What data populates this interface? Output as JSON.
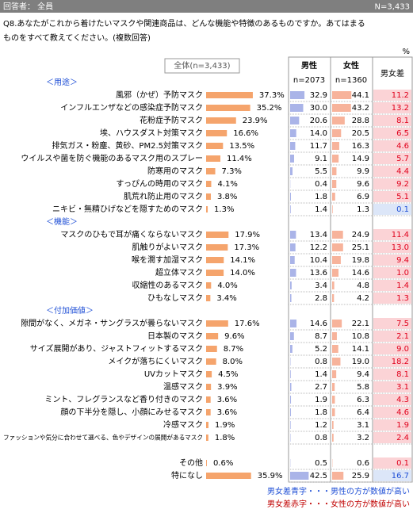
{
  "header": {
    "respondents": "回答者： 全員",
    "n": "N=3,433"
  },
  "question": [
    "Q8.あなたがこれから着けたいマスクや関連商品は、どんな機能や特徴のあるものですか。あてはまる",
    "ものをすべて教えてください。(複数回答)"
  ],
  "unit": "%",
  "chart_data": {
    "type": "bar",
    "columns": {
      "total": "全体(n=3,433)",
      "male": "男性",
      "male_n": "n=2073",
      "female": "女性",
      "female_n": "n=1360",
      "diff": "男女差"
    },
    "colors": {
      "total": "#f5a46c",
      "male": "#aab4e8",
      "female": "#f7b39b",
      "diff_female_bg": "#fbd3d6",
      "diff_female_text": "#e0001b",
      "diff_male_bg": "#dce6f8",
      "diff_male_text": "#1f4fd6"
    },
    "sections": [
      {
        "title": "＜用途＞",
        "rows": [
          {
            "label": "風邪（かぜ）予防マスク",
            "values": [
              37.3,
              32.9,
              44.1,
              11.2
            ],
            "value_labels": [
              "37.3%",
              "32.9",
              "44.1",
              "11.2"
            ]
          },
          {
            "label": "インフルエンザなどの感染症予防マスク",
            "values": [
              35.2,
              30.0,
              43.2,
              13.2
            ],
            "value_labels": [
              "35.2%",
              "30.0",
              "43.2",
              "13.2"
            ]
          },
          {
            "label": "花粉症予防マスク",
            "values": [
              23.9,
              20.6,
              28.8,
              8.1
            ],
            "value_labels": [
              "23.9%",
              "20.6",
              "28.8",
              "8.1"
            ]
          },
          {
            "label": "埃、ハウスダスト対策マスク",
            "values": [
              16.6,
              14.0,
              20.5,
              6.5
            ],
            "value_labels": [
              "16.6%",
              "14.0",
              "20.5",
              "6.5"
            ]
          },
          {
            "label": "排気ガス・粉塵、黄砂、PM2.5対策マスク",
            "values": [
              13.5,
              11.7,
              16.3,
              4.6
            ],
            "value_labels": [
              "13.5%",
              "11.7",
              "16.3",
              "4.6"
            ]
          },
          {
            "label": "ウイルスや菌を防ぐ機能のあるマスク用のスプレー",
            "values": [
              11.4,
              9.1,
              14.9,
              5.7
            ],
            "value_labels": [
              "11.4%",
              "9.1",
              "14.9",
              "5.7"
            ]
          },
          {
            "label": "防寒用のマスク",
            "values": [
              7.3,
              5.5,
              9.9,
              4.4
            ],
            "value_labels": [
              "7.3%",
              "5.5",
              "9.9",
              "4.4"
            ]
          },
          {
            "label": "すっぴんの時用のマスク",
            "values": [
              4.1,
              0.4,
              9.6,
              9.2
            ],
            "value_labels": [
              "4.1%",
              "0.4",
              "9.6",
              "9.2"
            ]
          },
          {
            "label": "肌荒れ防止用のマスク",
            "values": [
              3.8,
              1.8,
              6.9,
              5.1
            ],
            "value_labels": [
              "3.8%",
              "1.8",
              "6.9",
              "5.1"
            ]
          },
          {
            "label": "ニキビ・無精ひげなどを隠すためのマスク",
            "values": [
              1.3,
              1.4,
              1.3,
              0.1
            ],
            "value_labels": [
              "1.3%",
              "1.4",
              "1.3",
              "0.1"
            ]
          }
        ]
      },
      {
        "title": "＜機能＞",
        "rows": [
          {
            "label": "マスクのひもで耳が痛くならないマスク",
            "values": [
              17.9,
              13.4,
              24.9,
              11.4
            ],
            "value_labels": [
              "17.9%",
              "13.4",
              "24.9",
              "11.4"
            ]
          },
          {
            "label": "肌触りがよいマスク",
            "values": [
              17.3,
              12.2,
              25.1,
              13.0
            ],
            "value_labels": [
              "17.3%",
              "12.2",
              "25.1",
              "13.0"
            ]
          },
          {
            "label": "喉を潤す加湿マスク",
            "values": [
              14.1,
              10.4,
              19.8,
              9.4
            ],
            "value_labels": [
              "14.1%",
              "10.4",
              "19.8",
              "9.4"
            ]
          },
          {
            "label": "超立体マスク",
            "values": [
              14.0,
              13.6,
              14.6,
              1.0
            ],
            "value_labels": [
              "14.0%",
              "13.6",
              "14.6",
              "1.0"
            ]
          },
          {
            "label": "収縮性のあるマスク",
            "values": [
              4.0,
              3.4,
              4.8,
              1.4
            ],
            "value_labels": [
              "4.0%",
              "3.4",
              "4.8",
              "1.4"
            ]
          },
          {
            "label": "ひもなしマスク",
            "values": [
              3.4,
              2.8,
              4.2,
              1.3
            ],
            "value_labels": [
              "3.4%",
              "2.8",
              "4.2",
              "1.3"
            ]
          }
        ]
      },
      {
        "title": "＜付加価値＞",
        "rows": [
          {
            "label": "隙間がなく、メガネ・サングラスが曇らないマスク",
            "values": [
              17.6,
              14.6,
              22.1,
              7.5
            ],
            "value_labels": [
              "17.6%",
              "14.6",
              "22.1",
              "7.5"
            ]
          },
          {
            "label": "日本製のマスク",
            "values": [
              9.6,
              8.7,
              10.8,
              2.1
            ],
            "value_labels": [
              "9.6%",
              "8.7",
              "10.8",
              "2.1"
            ]
          },
          {
            "label": "サイズ展開があり、ジャストフィットするマスク",
            "values": [
              8.7,
              5.2,
              14.1,
              9.0
            ],
            "value_labels": [
              "8.7%",
              "5.2",
              "14.1",
              "9.0"
            ]
          },
          {
            "label": "メイクが落ちにくいマスク",
            "values": [
              8.0,
              0.8,
              19.0,
              18.2
            ],
            "value_labels": [
              "8.0%",
              "0.8",
              "19.0",
              "18.2"
            ]
          },
          {
            "label": "UVカットマスク",
            "values": [
              4.5,
              1.4,
              9.4,
              8.1
            ],
            "value_labels": [
              "4.5%",
              "1.4",
              "9.4",
              "8.1"
            ]
          },
          {
            "label": "温感マスク",
            "values": [
              3.9,
              2.7,
              5.8,
              3.1
            ],
            "value_labels": [
              "3.9%",
              "2.7",
              "5.8",
              "3.1"
            ]
          },
          {
            "label": "ミント、フレグランスなど香り付きのマスク",
            "values": [
              3.6,
              1.9,
              6.3,
              4.3
            ],
            "value_labels": [
              "3.6%",
              "1.9",
              "6.3",
              "4.3"
            ]
          },
          {
            "label": "顔の下半分を隠し、小顔にみせるマスク",
            "values": [
              3.6,
              1.8,
              6.4,
              4.6
            ],
            "value_labels": [
              "3.6%",
              "1.8",
              "6.4",
              "4.6"
            ]
          },
          {
            "label": "冷感マスク",
            "values": [
              1.9,
              1.2,
              3.1,
              1.9
            ],
            "value_labels": [
              "1.9%",
              "1.2",
              "3.1",
              "1.9"
            ]
          },
          {
            "label": "ファッションや気分に合わせて選べる、色やデザインの展開があるマスク",
            "values": [
              1.8,
              0.8,
              3.2,
              2.4
            ],
            "value_labels": [
              "1.8%",
              "0.8",
              "3.2",
              "2.4"
            ]
          }
        ]
      },
      {
        "rows": [
          {
            "label": "その他",
            "values": [
              0.6,
              0.5,
              0.6,
              0.1
            ],
            "value_labels": [
              "0.6%",
              "0.5",
              "0.6",
              "0.1"
            ]
          },
          {
            "label": "特になし",
            "values": [
              35.9,
              42.5,
              25.9,
              16.7
            ],
            "value_labels": [
              "35.9%",
              "42.5",
              "25.9",
              "16.7"
            ]
          }
        ]
      }
    ],
    "notes": [
      {
        "text": "男女差青字・・・男性の方が数値が高い",
        "color": "#1f4fd6"
      },
      {
        "text": "男女差赤字・・・女性の方が数値が高い",
        "color": "#c00000"
      }
    ]
  }
}
